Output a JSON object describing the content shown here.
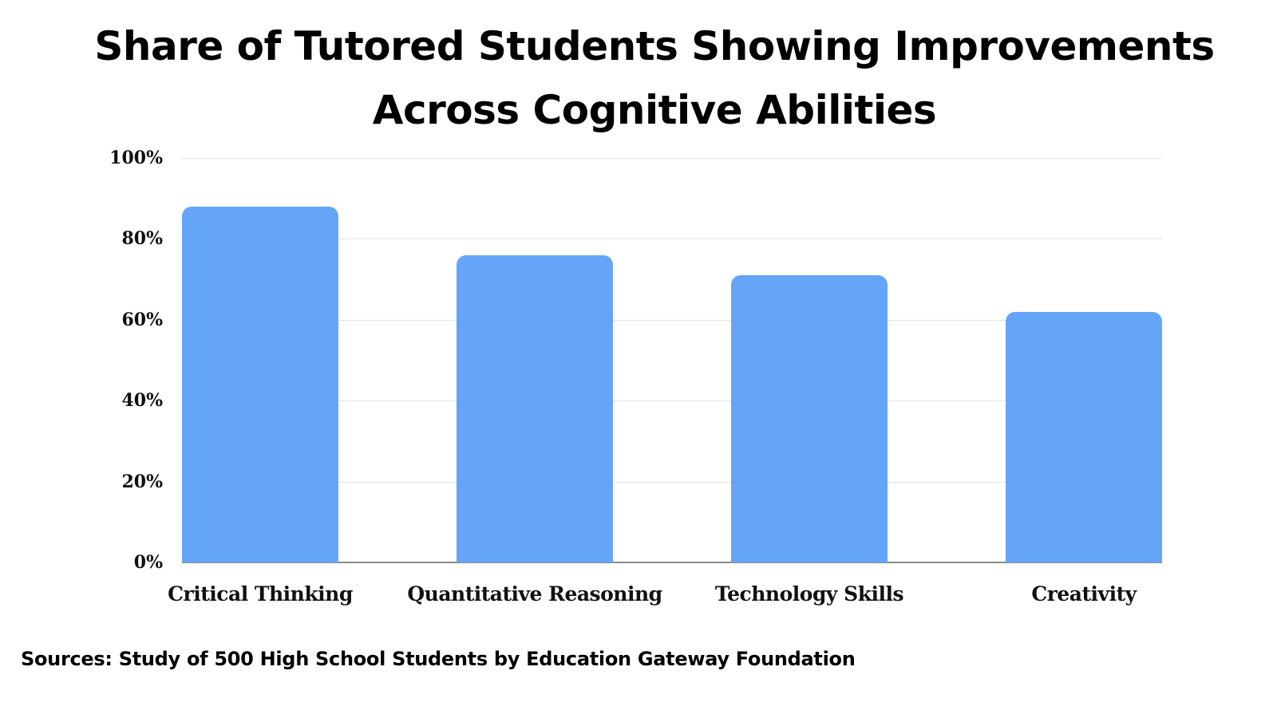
{
  "title_line1": "Share of Tutored Students Showing Improvements",
  "title_line2": "Across Cognitive Abilities",
  "source": "Sources: Study of 500 High School Students by Education Gateway Foundation",
  "colors": {
    "bar": "#64a5f8",
    "grid": "#e3e3e3",
    "text": "#000000"
  },
  "chart_data": {
    "type": "bar",
    "title": "Share of Tutored Students Showing Improvements Across Cognitive Abilities",
    "xlabel": "",
    "ylabel": "",
    "categories": [
      "Critical Thinking",
      "Quantitative Reasoning",
      "Technology Skills",
      "Creativity"
    ],
    "values": [
      88,
      76,
      71,
      62
    ],
    "unit": "%",
    "ylim": [
      0,
      100
    ],
    "yticks": [
      "0%",
      "20%",
      "40%",
      "60%",
      "80%",
      "100%"
    ],
    "grid": true,
    "legend": null
  }
}
